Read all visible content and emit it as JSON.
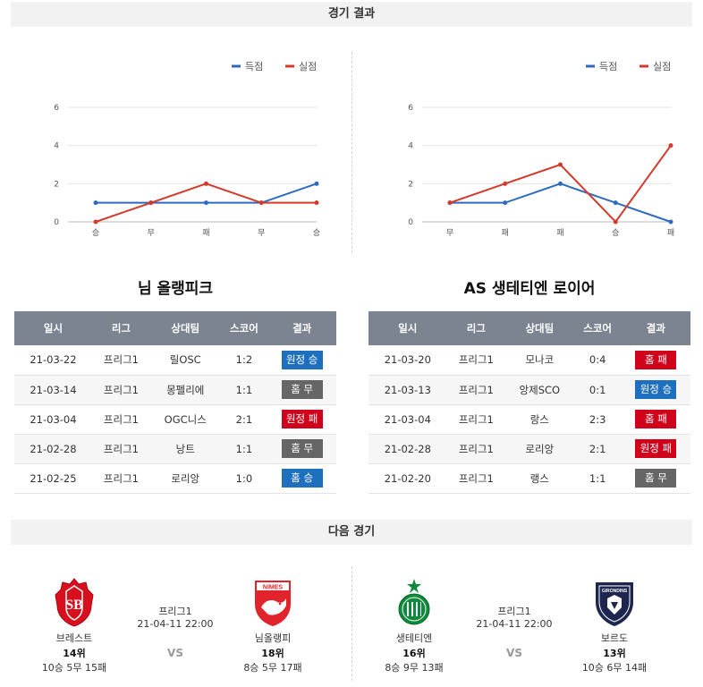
{
  "sections": {
    "results_title": "경기 결과",
    "next_title": "다음 경기"
  },
  "legend": {
    "scored": "득점",
    "conceded": "실점"
  },
  "colors": {
    "scored": "#2e6bbf",
    "conceded": "#d43a2a",
    "win": "#1f6fbf",
    "draw": "#666666",
    "loss": "#d0021b"
  },
  "chart_data": [
    {
      "type": "line",
      "categories": [
        "승",
        "무",
        "패",
        "무",
        "승"
      ],
      "series": [
        {
          "name": "득점",
          "values": [
            1,
            1,
            1,
            1,
            2
          ]
        },
        {
          "name": "실점",
          "values": [
            0,
            1,
            2,
            1,
            1
          ]
        }
      ],
      "yticks": [
        "0",
        "2",
        "4",
        "6"
      ],
      "ylim": [
        0,
        6
      ],
      "grid": true,
      "legend": "top-right"
    },
    {
      "type": "line",
      "categories": [
        "무",
        "패",
        "패",
        "승",
        "패"
      ],
      "series": [
        {
          "name": "득점",
          "values": [
            1,
            1,
            2,
            1,
            0
          ]
        },
        {
          "name": "실점",
          "values": [
            1,
            2,
            3,
            0,
            4
          ]
        }
      ],
      "yticks": [
        "0",
        "2",
        "4",
        "6"
      ],
      "ylim": [
        0,
        6
      ],
      "grid": true,
      "legend": "top-right"
    }
  ],
  "table_headers": [
    "일시",
    "리그",
    "상대팀",
    "스코어",
    "결과"
  ],
  "teams": [
    {
      "title": "님 올랭피크",
      "rows": [
        {
          "date": "21-03-22",
          "league": "프리그1",
          "opponent": "릴OSC",
          "score": "1:2",
          "result": "원정 승",
          "type": "win"
        },
        {
          "date": "21-03-14",
          "league": "프리그1",
          "opponent": "몽펠리에",
          "score": "1:1",
          "result": "홈 무",
          "type": "draw"
        },
        {
          "date": "21-03-04",
          "league": "프리그1",
          "opponent": "OGC니스",
          "score": "2:1",
          "result": "원정 패",
          "type": "loss"
        },
        {
          "date": "21-02-28",
          "league": "프리그1",
          "opponent": "낭트",
          "score": "1:1",
          "result": "홈 무",
          "type": "draw"
        },
        {
          "date": "21-02-25",
          "league": "프리그1",
          "opponent": "로리앙",
          "score": "1:0",
          "result": "홈 승",
          "type": "win"
        }
      ]
    },
    {
      "title": "AS 생테티엔 로이어",
      "rows": [
        {
          "date": "21-03-20",
          "league": "프리그1",
          "opponent": "모나코",
          "score": "0:4",
          "result": "홈 패",
          "type": "loss"
        },
        {
          "date": "21-03-13",
          "league": "프리그1",
          "opponent": "앙제SCO",
          "score": "0:1",
          "result": "원정 승",
          "type": "win"
        },
        {
          "date": "21-03-04",
          "league": "프리그1",
          "opponent": "랑스",
          "score": "2:3",
          "result": "홈 패",
          "type": "loss"
        },
        {
          "date": "21-02-28",
          "league": "프리그1",
          "opponent": "로리앙",
          "score": "2:1",
          "result": "원정 패",
          "type": "loss"
        },
        {
          "date": "21-02-20",
          "league": "프리그1",
          "opponent": "랭스",
          "score": "1:1",
          "result": "홈 무",
          "type": "draw"
        }
      ]
    }
  ],
  "next_matches": [
    {
      "league": "프리그1",
      "datetime": "21-04-11 22:00",
      "vs": "VS",
      "home": {
        "name": "브레스트",
        "rank": "14위",
        "record": "10승 5무 15패",
        "logo": "brest-logo",
        "color": "#d7101e"
      },
      "away": {
        "name": "님올랭피",
        "rank": "18위",
        "record": "8승 5무 17패",
        "logo": "nimes-logo",
        "color": "#e1242c",
        "logo_text": "NIMES"
      }
    },
    {
      "league": "프리그1",
      "datetime": "21-04-11 22:00",
      "vs": "VS",
      "home": {
        "name": "생테티엔",
        "rank": "16위",
        "record": "8승 9무 13패",
        "logo": "saint-etienne-logo",
        "color": "#0d8a3b"
      },
      "away": {
        "name": "보르도",
        "rank": "13위",
        "record": "10승 6무 14패",
        "logo": "bordeaux-logo",
        "color": "#1e2650",
        "logo_text": "GIRONDINS"
      }
    }
  ]
}
